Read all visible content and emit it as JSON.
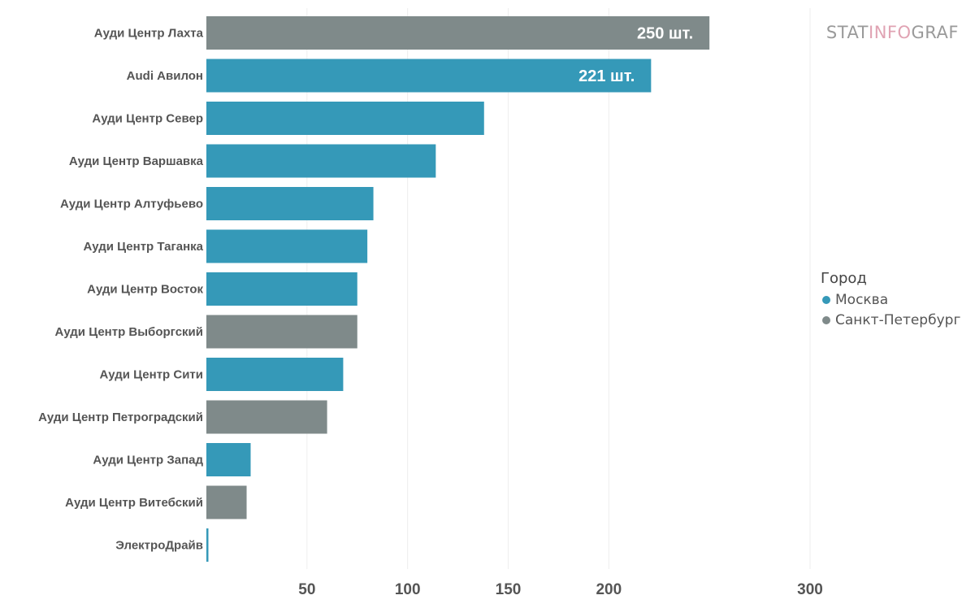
{
  "chart_data": {
    "type": "bar",
    "orientation": "horizontal",
    "categories": [
      "Ауди Центр Лахта",
      "Audi Авилон",
      "Ауди Центр Север",
      "Ауди Центр Варшавка",
      "Ауди Центр Алтуфьево",
      "Ауди Центр Таганка",
      "Ауди Центр Восток",
      "Ауди Центр Выборгский",
      "Ауди Центр Сити",
      "Ауди Центр Петроградский",
      "Ауди Центр Запад",
      "Ауди Центр Витебский",
      "ЭлектроДрайв"
    ],
    "values": [
      250,
      221,
      138,
      114,
      83,
      80,
      75,
      75,
      68,
      60,
      22,
      20,
      1
    ],
    "groups": [
      "Санкт-Петербург",
      "Москва",
      "Москва",
      "Москва",
      "Москва",
      "Москва",
      "Москва",
      "Санкт-Петербург",
      "Москва",
      "Санкт-Петербург",
      "Москва",
      "Санкт-Петербург",
      "Москва"
    ],
    "data_labels": [
      "250 шт.",
      "221 шт.",
      "",
      "",
      "",
      "",
      "",
      "",
      "",
      "",
      "",
      "",
      ""
    ],
    "xticks": [
      50,
      100,
      150,
      200,
      300
    ],
    "xlim": [
      0,
      300
    ],
    "grid": true,
    "legend": {
      "title": "Город",
      "position": "right",
      "entries": [
        {
          "name": "Москва",
          "color": "#3599b8"
        },
        {
          "name": "Санкт-Петербург",
          "color": "#7f8a8a"
        }
      ]
    }
  },
  "brand": {
    "part1": "STAT",
    "part2": "INFO",
    "part3": "GRAF"
  }
}
